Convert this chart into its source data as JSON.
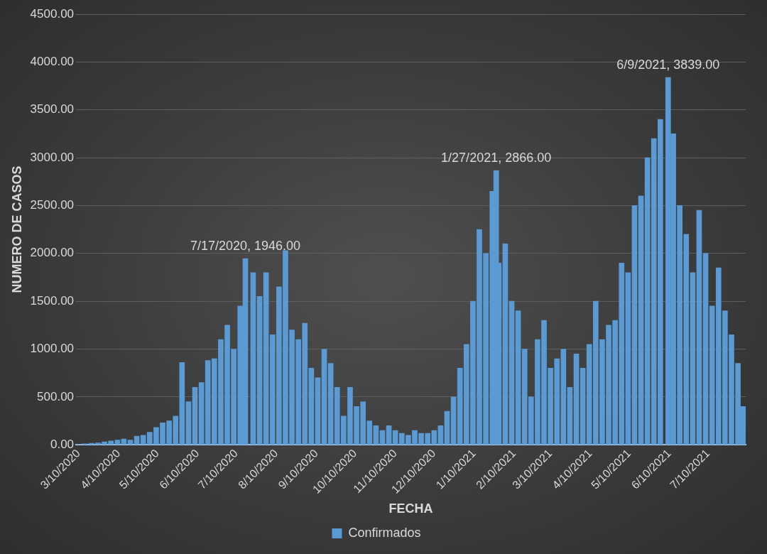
{
  "chart_data": {
    "type": "bar",
    "xlabel": "FECHA",
    "ylabel": "NUMERO DE CASOS",
    "legend": "bottom",
    "grid": "y",
    "xlim": [
      "2020-03-08",
      "2021-08-08"
    ],
    "xticks": [
      {
        "value": "2020-03-10",
        "label": "3/10/2020"
      },
      {
        "value": "2020-04-10",
        "label": "4/10/2020"
      },
      {
        "value": "2020-05-10",
        "label": "5/10/2020"
      },
      {
        "value": "2020-06-10",
        "label": "6/10/2020"
      },
      {
        "value": "2020-07-10",
        "label": "7/10/2020"
      },
      {
        "value": "2020-08-10",
        "label": "8/10/2020"
      },
      {
        "value": "2020-09-10",
        "label": "9/10/2020"
      },
      {
        "value": "2020-10-10",
        "label": "10/10/2020"
      },
      {
        "value": "2020-11-10",
        "label": "11/10/2020"
      },
      {
        "value": "2020-12-10",
        "label": "12/10/2020"
      },
      {
        "value": "2021-01-10",
        "label": "1/10/2021"
      },
      {
        "value": "2021-02-10",
        "label": "2/10/2021"
      },
      {
        "value": "2021-03-10",
        "label": "3/10/2021"
      },
      {
        "value": "2021-04-10",
        "label": "4/10/2021"
      },
      {
        "value": "2021-05-10",
        "label": "5/10/2021"
      },
      {
        "value": "2021-06-10",
        "label": "6/10/2021"
      },
      {
        "value": "2021-07-10",
        "label": "7/10/2021"
      }
    ],
    "ylim": [
      0,
      4500
    ],
    "yticks": [
      {
        "value": 0,
        "label": "0.00"
      },
      {
        "value": 500,
        "label": "500.00"
      },
      {
        "value": 1000,
        "label": "1000.00"
      },
      {
        "value": 1500,
        "label": "1500.00"
      },
      {
        "value": 2000,
        "label": "2000.00"
      },
      {
        "value": 2500,
        "label": "2500.00"
      },
      {
        "value": 3000,
        "label": "3000.00"
      },
      {
        "value": 3500,
        "label": "3500.00"
      },
      {
        "value": 4000,
        "label": "4000.00"
      },
      {
        "value": 4500,
        "label": "4500.00"
      }
    ],
    "x": [
      "2020-03-10",
      "2020-03-15",
      "2020-03-20",
      "2020-03-25",
      "2020-03-30",
      "2020-04-04",
      "2020-04-09",
      "2020-04-14",
      "2020-04-19",
      "2020-04-24",
      "2020-04-29",
      "2020-05-04",
      "2020-05-09",
      "2020-05-14",
      "2020-05-19",
      "2020-05-24",
      "2020-05-29",
      "2020-06-03",
      "2020-06-08",
      "2020-06-13",
      "2020-06-18",
      "2020-06-23",
      "2020-06-28",
      "2020-07-03",
      "2020-07-08",
      "2020-07-13",
      "2020-07-17",
      "2020-07-23",
      "2020-07-28",
      "2020-08-02",
      "2020-08-07",
      "2020-08-12",
      "2020-08-17",
      "2020-08-22",
      "2020-08-27",
      "2020-09-01",
      "2020-09-06",
      "2020-09-11",
      "2020-09-16",
      "2020-09-21",
      "2020-09-26",
      "2020-10-01",
      "2020-10-06",
      "2020-10-11",
      "2020-10-16",
      "2020-10-21",
      "2020-10-26",
      "2020-10-31",
      "2020-11-05",
      "2020-11-10",
      "2020-11-15",
      "2020-11-20",
      "2020-11-25",
      "2020-11-30",
      "2020-12-05",
      "2020-12-10",
      "2020-12-15",
      "2020-12-20",
      "2020-12-25",
      "2020-12-30",
      "2021-01-04",
      "2021-01-09",
      "2021-01-14",
      "2021-01-19",
      "2021-01-24",
      "2021-01-27",
      "2021-01-29",
      "2021-02-03",
      "2021-02-08",
      "2021-02-13",
      "2021-02-18",
      "2021-02-23",
      "2021-02-28",
      "2021-03-05",
      "2021-03-10",
      "2021-03-15",
      "2021-03-20",
      "2021-03-25",
      "2021-03-30",
      "2021-04-04",
      "2021-04-09",
      "2021-04-14",
      "2021-04-19",
      "2021-04-24",
      "2021-04-29",
      "2021-05-04",
      "2021-05-09",
      "2021-05-14",
      "2021-05-19",
      "2021-05-24",
      "2021-05-29",
      "2021-06-03",
      "2021-06-09",
      "2021-06-13",
      "2021-06-18",
      "2021-06-23",
      "2021-06-28",
      "2021-07-03",
      "2021-07-08",
      "2021-07-13",
      "2021-07-18",
      "2021-07-23",
      "2021-07-28",
      "2021-08-02",
      "2021-08-06"
    ],
    "series": [
      {
        "name": "Confirmados",
        "color": "#5b9bd5",
        "values": [
          5,
          10,
          15,
          20,
          30,
          40,
          50,
          60,
          50,
          90,
          100,
          130,
          180,
          230,
          250,
          300,
          860,
          450,
          600,
          650,
          880,
          900,
          1100,
          1250,
          1000,
          1450,
          1946,
          1800,
          1550,
          1800,
          1150,
          1650,
          2030,
          1200,
          1100,
          1270,
          800,
          700,
          1000,
          850,
          600,
          300,
          600,
          400,
          450,
          250,
          200,
          150,
          200,
          150,
          120,
          100,
          150,
          120,
          120,
          150,
          200,
          350,
          500,
          800,
          1050,
          1500,
          2250,
          2000,
          2650,
          2866,
          1900,
          2100,
          1500,
          1400,
          1000,
          500,
          1100,
          1300,
          800,
          900,
          1000,
          600,
          950,
          800,
          1050,
          1500,
          1100,
          1250,
          1300,
          1900,
          1800,
          2500,
          2600,
          3000,
          3200,
          3400,
          3839,
          3250,
          2500,
          2200,
          1800,
          2450,
          2000,
          1450,
          1850,
          1400,
          1150,
          850,
          400
        ]
      }
    ],
    "annotations": [
      {
        "text": "7/17/2020, 1946.00",
        "x": "2020-07-17",
        "y": 1946
      },
      {
        "text": "1/27/2021, 2866.00",
        "x": "2021-01-27",
        "y": 2866
      },
      {
        "text": "6/9/2021, 3839.00",
        "x": "2021-06-09",
        "y": 3839
      }
    ]
  }
}
